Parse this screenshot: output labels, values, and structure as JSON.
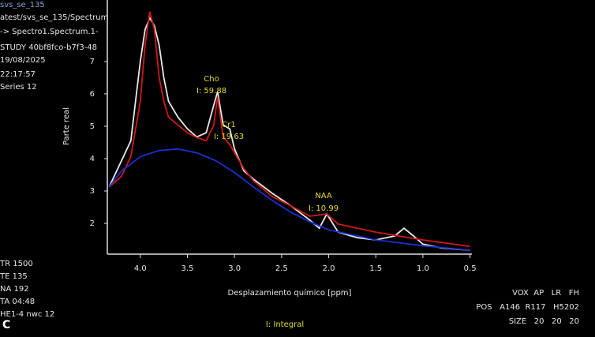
{
  "chart_data": {
    "type": "line",
    "x_label": "Desplazamiento químico [ppm]",
    "y_label": "Parte real",
    "xlim": [
      4.35,
      0.48
    ],
    "ylim": [
      1.05,
      8.9
    ],
    "xticks": [
      {
        "value": 4,
        "label": "4.0"
      },
      3.5,
      {
        "value": 3,
        "label": "3.0"
      },
      2.5,
      {
        "value": 2,
        "label": "2.0"
      },
      1.5,
      {
        "value": 1,
        "label": "1.0"
      },
      0.5
    ],
    "yticks": [
      2,
      3,
      4,
      5,
      6,
      7
    ],
    "series": [
      {
        "color": "#e8e8e8",
        "x": [
          4.33,
          4.1,
          4.0,
          3.95,
          3.9,
          3.85,
          3.8,
          3.75,
          3.7,
          3.6,
          3.5,
          3.4,
          3.3,
          3.22,
          3.18,
          3.12,
          3.05,
          3.0,
          2.9,
          2.8,
          2.6,
          2.4,
          2.2,
          2.1,
          2.02,
          1.9,
          1.7,
          1.5,
          1.3,
          1.2,
          1.1,
          1.0,
          0.8,
          0.5
        ],
        "values": [
          3.13,
          4.55,
          7,
          7.98,
          8.35,
          8.1,
          7.5,
          6.5,
          5.77,
          5.28,
          4.92,
          4.67,
          4.8,
          5.65,
          6.07,
          5.04,
          4.92,
          4.3,
          3.62,
          3.37,
          2.93,
          2.54,
          2.1,
          1.85,
          2.29,
          1.73,
          1.56,
          1.49,
          1.61,
          1.85,
          1.61,
          1.36,
          1.24,
          1.17
        ]
      },
      {
        "color": "#d01818",
        "x": [
          4.33,
          4.2,
          4.1,
          4.0,
          3.95,
          3.9,
          3.85,
          3.8,
          3.75,
          3.7,
          3.6,
          3.5,
          3.4,
          3.3,
          3.22,
          3.18,
          3.12,
          3.05,
          3.0,
          2.9,
          2.8,
          2.6,
          2.4,
          2.2,
          2.02,
          1.9,
          1.5,
          1.0,
          0.5
        ],
        "values": [
          3.13,
          3.45,
          4.06,
          5.77,
          7.5,
          8.54,
          7.98,
          6.5,
          5.77,
          5.28,
          5.04,
          4.8,
          4.65,
          4.55,
          5.04,
          5.9,
          4.67,
          4.43,
          4.18,
          3.69,
          3.32,
          2.83,
          2.54,
          2.22,
          2.29,
          1.98,
          1.73,
          1.49,
          1.29
        ]
      },
      {
        "color": "#1a2fd0",
        "x": [
          4.33,
          4.2,
          4.0,
          3.8,
          3.6,
          3.4,
          3.2,
          3.0,
          2.8,
          2.6,
          2.4,
          2.2,
          2.0,
          1.5,
          1.0,
          0.5
        ],
        "values": [
          3.13,
          3.62,
          4.06,
          4.25,
          4.3,
          4.18,
          3.94,
          3.57,
          3.13,
          2.71,
          2.34,
          2.05,
          1.8,
          1.49,
          1.31,
          1.17
        ]
      }
    ],
    "annotations": [
      "Cho",
      "I: 59.88",
      "Cr1",
      "I: 19.63",
      "NAA",
      "I: 10.99"
    ]
  },
  "overlay": {
    "top_left": [
      "svs_se_135",
      "atest/svs_se_135/Spectrum",
      "-> Spectro1.Spectrum.1-",
      "STUDY 40bf8fco-b7f3-48",
      "19/08/2025",
      "22:17:57",
      "Series 12"
    ],
    "bottom_left": [
      "TR 1500",
      "TE 135",
      "NA 192",
      "TA 04:48",
      "HE1-4 nwc 12"
    ],
    "bottom_right": [
      "VOX  AP   LR   FH",
      "POS   A146  R117   H5202",
      "SIZE   20   20   20"
    ],
    "footer": "I: Integral",
    "corner": "C"
  }
}
